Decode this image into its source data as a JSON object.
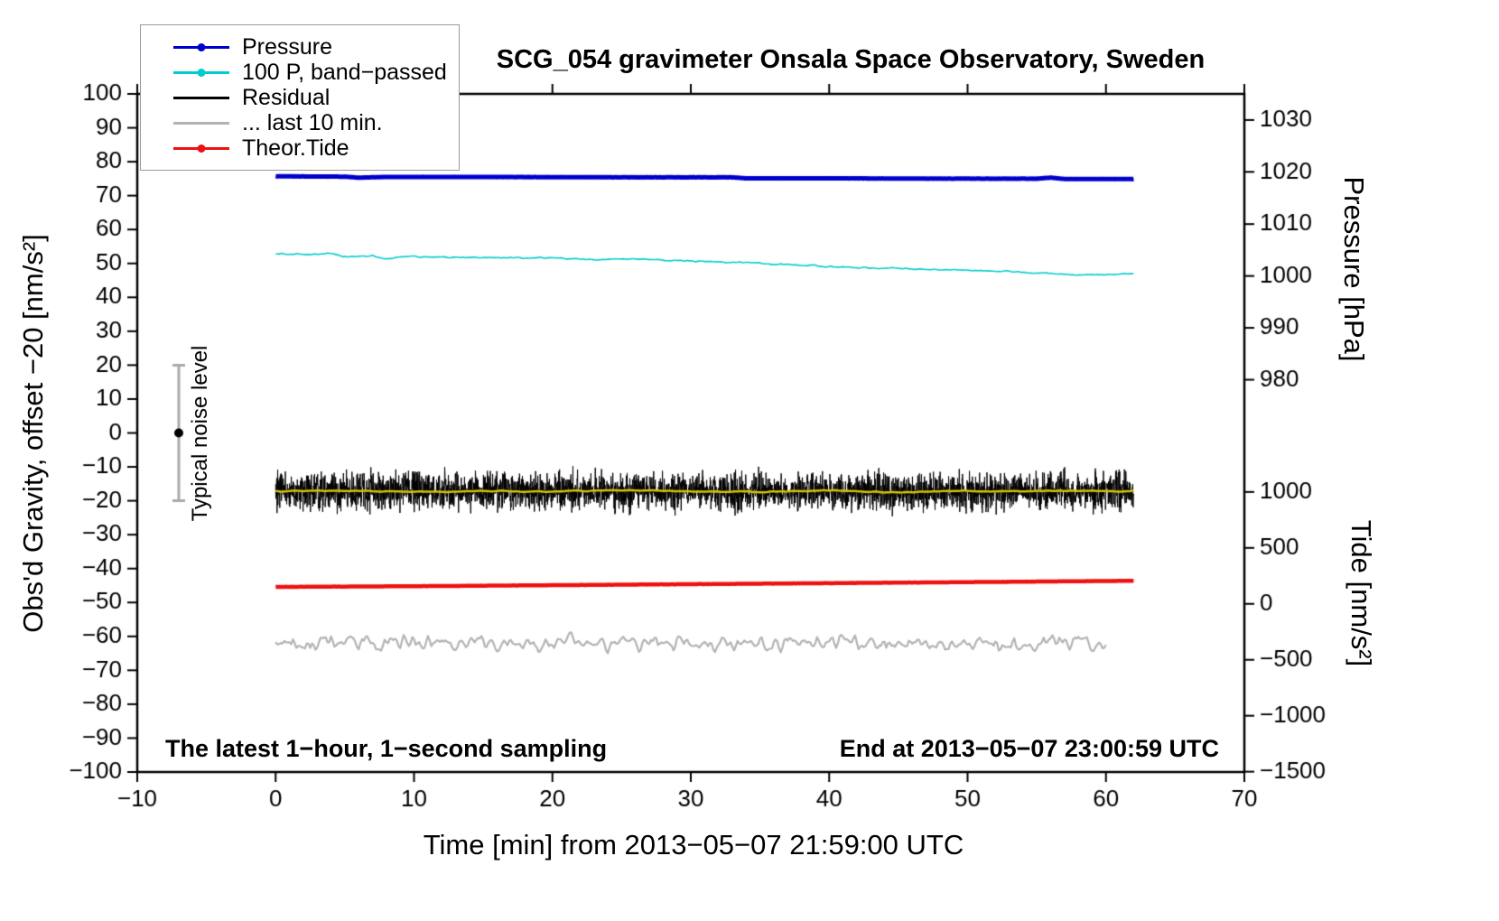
{
  "title": "SCG_054 gravimeter Onsala Space Observatory, Sweden",
  "xlabel": "Time [min] from 2013−05−07 21:59:00 UTC",
  "ylabel_left": "Obs'd Gravity, offset −20 [nm/s²]",
  "ylabel_right_top": "Pressure [hPa]",
  "ylabel_right_bottom": "Tide [nm/s²]",
  "annotation_left": "The latest 1−hour, 1−second sampling",
  "annotation_right": "End at 2013−05−07 23:00:59 UTC",
  "noise_bar_label": "Typical noise level",
  "legend": [
    {
      "label": "Pressure",
      "color": "#0000cc",
      "marker": true
    },
    {
      "label": "100 P, band−passed",
      "color": "#00cccc",
      "marker": true
    },
    {
      "label": "Residual",
      "color": "#000000",
      "marker": false
    },
    {
      "label": "... last 10 min.",
      "color": "#b3b3b3",
      "marker": false
    },
    {
      "label": "Theor.Tide",
      "color": "#ee1111",
      "marker": true
    }
  ],
  "chart_data": {
    "type": "line",
    "title": "SCG_054 gravimeter Onsala Space Observatory, Sweden",
    "x_axis": {
      "label": "Time [min] from 2013−05−07 21:59:00 UTC",
      "min": -10,
      "max": 70,
      "ticks": [
        {
          "v": -10,
          "label": "−10"
        },
        {
          "v": 0,
          "label": "0"
        },
        {
          "v": 10,
          "label": "10"
        },
        {
          "v": 20,
          "label": "20"
        },
        {
          "v": 30,
          "label": "30"
        },
        {
          "v": 40,
          "label": "40"
        },
        {
          "v": 50,
          "label": "50"
        },
        {
          "v": 60,
          "label": "60"
        },
        {
          "v": 70,
          "label": "70"
        }
      ]
    },
    "y_axis_left": {
      "label": "Obs'd Gravity, offset −20 [nm/s²]",
      "min": -100,
      "max": 100,
      "ticks": [
        {
          "v": 100,
          "label": "100"
        },
        {
          "v": 90,
          "label": "90"
        },
        {
          "v": 80,
          "label": "80"
        },
        {
          "v": 70,
          "label": "70"
        },
        {
          "v": 60,
          "label": "60"
        },
        {
          "v": 50,
          "label": "50"
        },
        {
          "v": 40,
          "label": "40"
        },
        {
          "v": 30,
          "label": "30"
        },
        {
          "v": 20,
          "label": "20"
        },
        {
          "v": 10,
          "label": "10"
        },
        {
          "v": 0,
          "label": "0"
        },
        {
          "v": -10,
          "label": "−10"
        },
        {
          "v": -20,
          "label": "−20"
        },
        {
          "v": -30,
          "label": "−30"
        },
        {
          "v": -40,
          "label": "−40"
        },
        {
          "v": -50,
          "label": "−50"
        },
        {
          "v": -60,
          "label": "−60"
        },
        {
          "v": -70,
          "label": "−70"
        },
        {
          "v": -80,
          "label": "−80"
        },
        {
          "v": -90,
          "label": "−90"
        },
        {
          "v": -100,
          "label": "−100"
        }
      ]
    },
    "y_axis_right_pressure": {
      "label": "Pressure [hPa]",
      "ticks": [
        {
          "label": "1030",
          "v": 92.3
        },
        {
          "label": "1020",
          "v": 77.0
        },
        {
          "label": "1010",
          "v": 61.6
        },
        {
          "label": "1000",
          "v": 46.3
        },
        {
          "label": "990",
          "v": 31.0
        },
        {
          "label": "980",
          "v": 15.7
        }
      ]
    },
    "y_axis_right_tide": {
      "label": "Tide [nm/s²]",
      "ticks": [
        {
          "label": "1000",
          "v": -17.4
        },
        {
          "label": "500",
          "v": -33.9
        },
        {
          "label": "0",
          "v": -50.4
        },
        {
          "label": "−500",
          "v": -66.9
        },
        {
          "label": "−1000",
          "v": -83.4
        },
        {
          "label": "−1500",
          "v": -99.9
        }
      ]
    },
    "noise_bar": {
      "x": -7,
      "from": -20,
      "to": 20,
      "dot": 0,
      "label": "Typical noise level"
    },
    "series": [
      {
        "name": "Pressure",
        "color": "#0000cc",
        "width": 5,
        "x_range": [
          0,
          62
        ],
        "ppm": 40,
        "noise": 0.07,
        "smooth": 1,
        "cps": [
          [
            0,
            75.7
          ],
          [
            5,
            75.6
          ],
          [
            6,
            75.3
          ],
          [
            8,
            75.5
          ],
          [
            15,
            75.5
          ],
          [
            25,
            75.4
          ],
          [
            33,
            75.4
          ],
          [
            34,
            75.1
          ],
          [
            40,
            75.1
          ],
          [
            48,
            75.0
          ],
          [
            55,
            75.0
          ],
          [
            56,
            75.3
          ],
          [
            57,
            74.9
          ],
          [
            62,
            74.9
          ]
        ]
      },
      {
        "name": "100 P, band−passed",
        "color": "#00cccc",
        "width": 1.6,
        "x_range": [
          0,
          62
        ],
        "ppm": 8,
        "noise": 0.45,
        "smooth": 1,
        "cps": [
          [
            0,
            52.9
          ],
          [
            2,
            52.6
          ],
          [
            4,
            52.9
          ],
          [
            5,
            51.9
          ],
          [
            7,
            52.3
          ],
          [
            8,
            51.3
          ],
          [
            9,
            52.0
          ],
          [
            12,
            51.9
          ],
          [
            15,
            51.7
          ],
          [
            20,
            51.6
          ],
          [
            23,
            51.2
          ],
          [
            26,
            51.3
          ],
          [
            30,
            50.7
          ],
          [
            34,
            50.3
          ],
          [
            37,
            49.6
          ],
          [
            40,
            49.1
          ],
          [
            43,
            48.7
          ],
          [
            46,
            48.4
          ],
          [
            50,
            48.0
          ],
          [
            53,
            47.6
          ],
          [
            56,
            47.0
          ],
          [
            58,
            46.6
          ],
          [
            60,
            46.7
          ],
          [
            62,
            47.1
          ]
        ]
      },
      {
        "name": "Residual",
        "color": "#000000",
        "width": 1,
        "x_range": [
          0,
          62
        ],
        "ppm": 60,
        "noise": 8,
        "smooth": 0,
        "cps": [
          [
            0,
            -17.2
          ],
          [
            62,
            -17.2
          ]
        ]
      },
      {
        "name": "Residual smoothed",
        "color": "#d4c400",
        "width": 2.5,
        "x_range": [
          0,
          62
        ],
        "ppm": 6,
        "noise": 0.5,
        "smooth": 2,
        "cps": [
          [
            0,
            -17.2
          ],
          [
            5,
            -17.0
          ],
          [
            10,
            -17.4
          ],
          [
            15,
            -17.1
          ],
          [
            20,
            -17.3
          ],
          [
            25,
            -16.9
          ],
          [
            30,
            -17.2
          ],
          [
            35,
            -17.4
          ],
          [
            40,
            -17.0
          ],
          [
            45,
            -17.6
          ],
          [
            48,
            -17.1
          ],
          [
            52,
            -17.3
          ],
          [
            57,
            -17.0
          ],
          [
            62,
            -17.2
          ]
        ]
      },
      {
        "name": "Theor.Tide",
        "color": "#ee1111",
        "width": 4.5,
        "x_range": [
          0,
          62
        ],
        "ppm": 20,
        "noise": 0.06,
        "smooth": 1,
        "cps": [
          [
            0,
            -45.4
          ],
          [
            10,
            -45.2
          ],
          [
            20,
            -44.9
          ],
          [
            30,
            -44.6
          ],
          [
            40,
            -44.3
          ],
          [
            50,
            -44.0
          ],
          [
            62,
            -43.6
          ]
        ]
      },
      {
        "name": "... last 10 min.",
        "color": "#b3b3b3",
        "width": 2.2,
        "x_range": [
          0,
          60
        ],
        "ppm": 8,
        "noise": 5.5,
        "smooth": 1,
        "cps": [
          [
            0,
            -62
          ],
          [
            60,
            -62
          ]
        ]
      }
    ]
  }
}
